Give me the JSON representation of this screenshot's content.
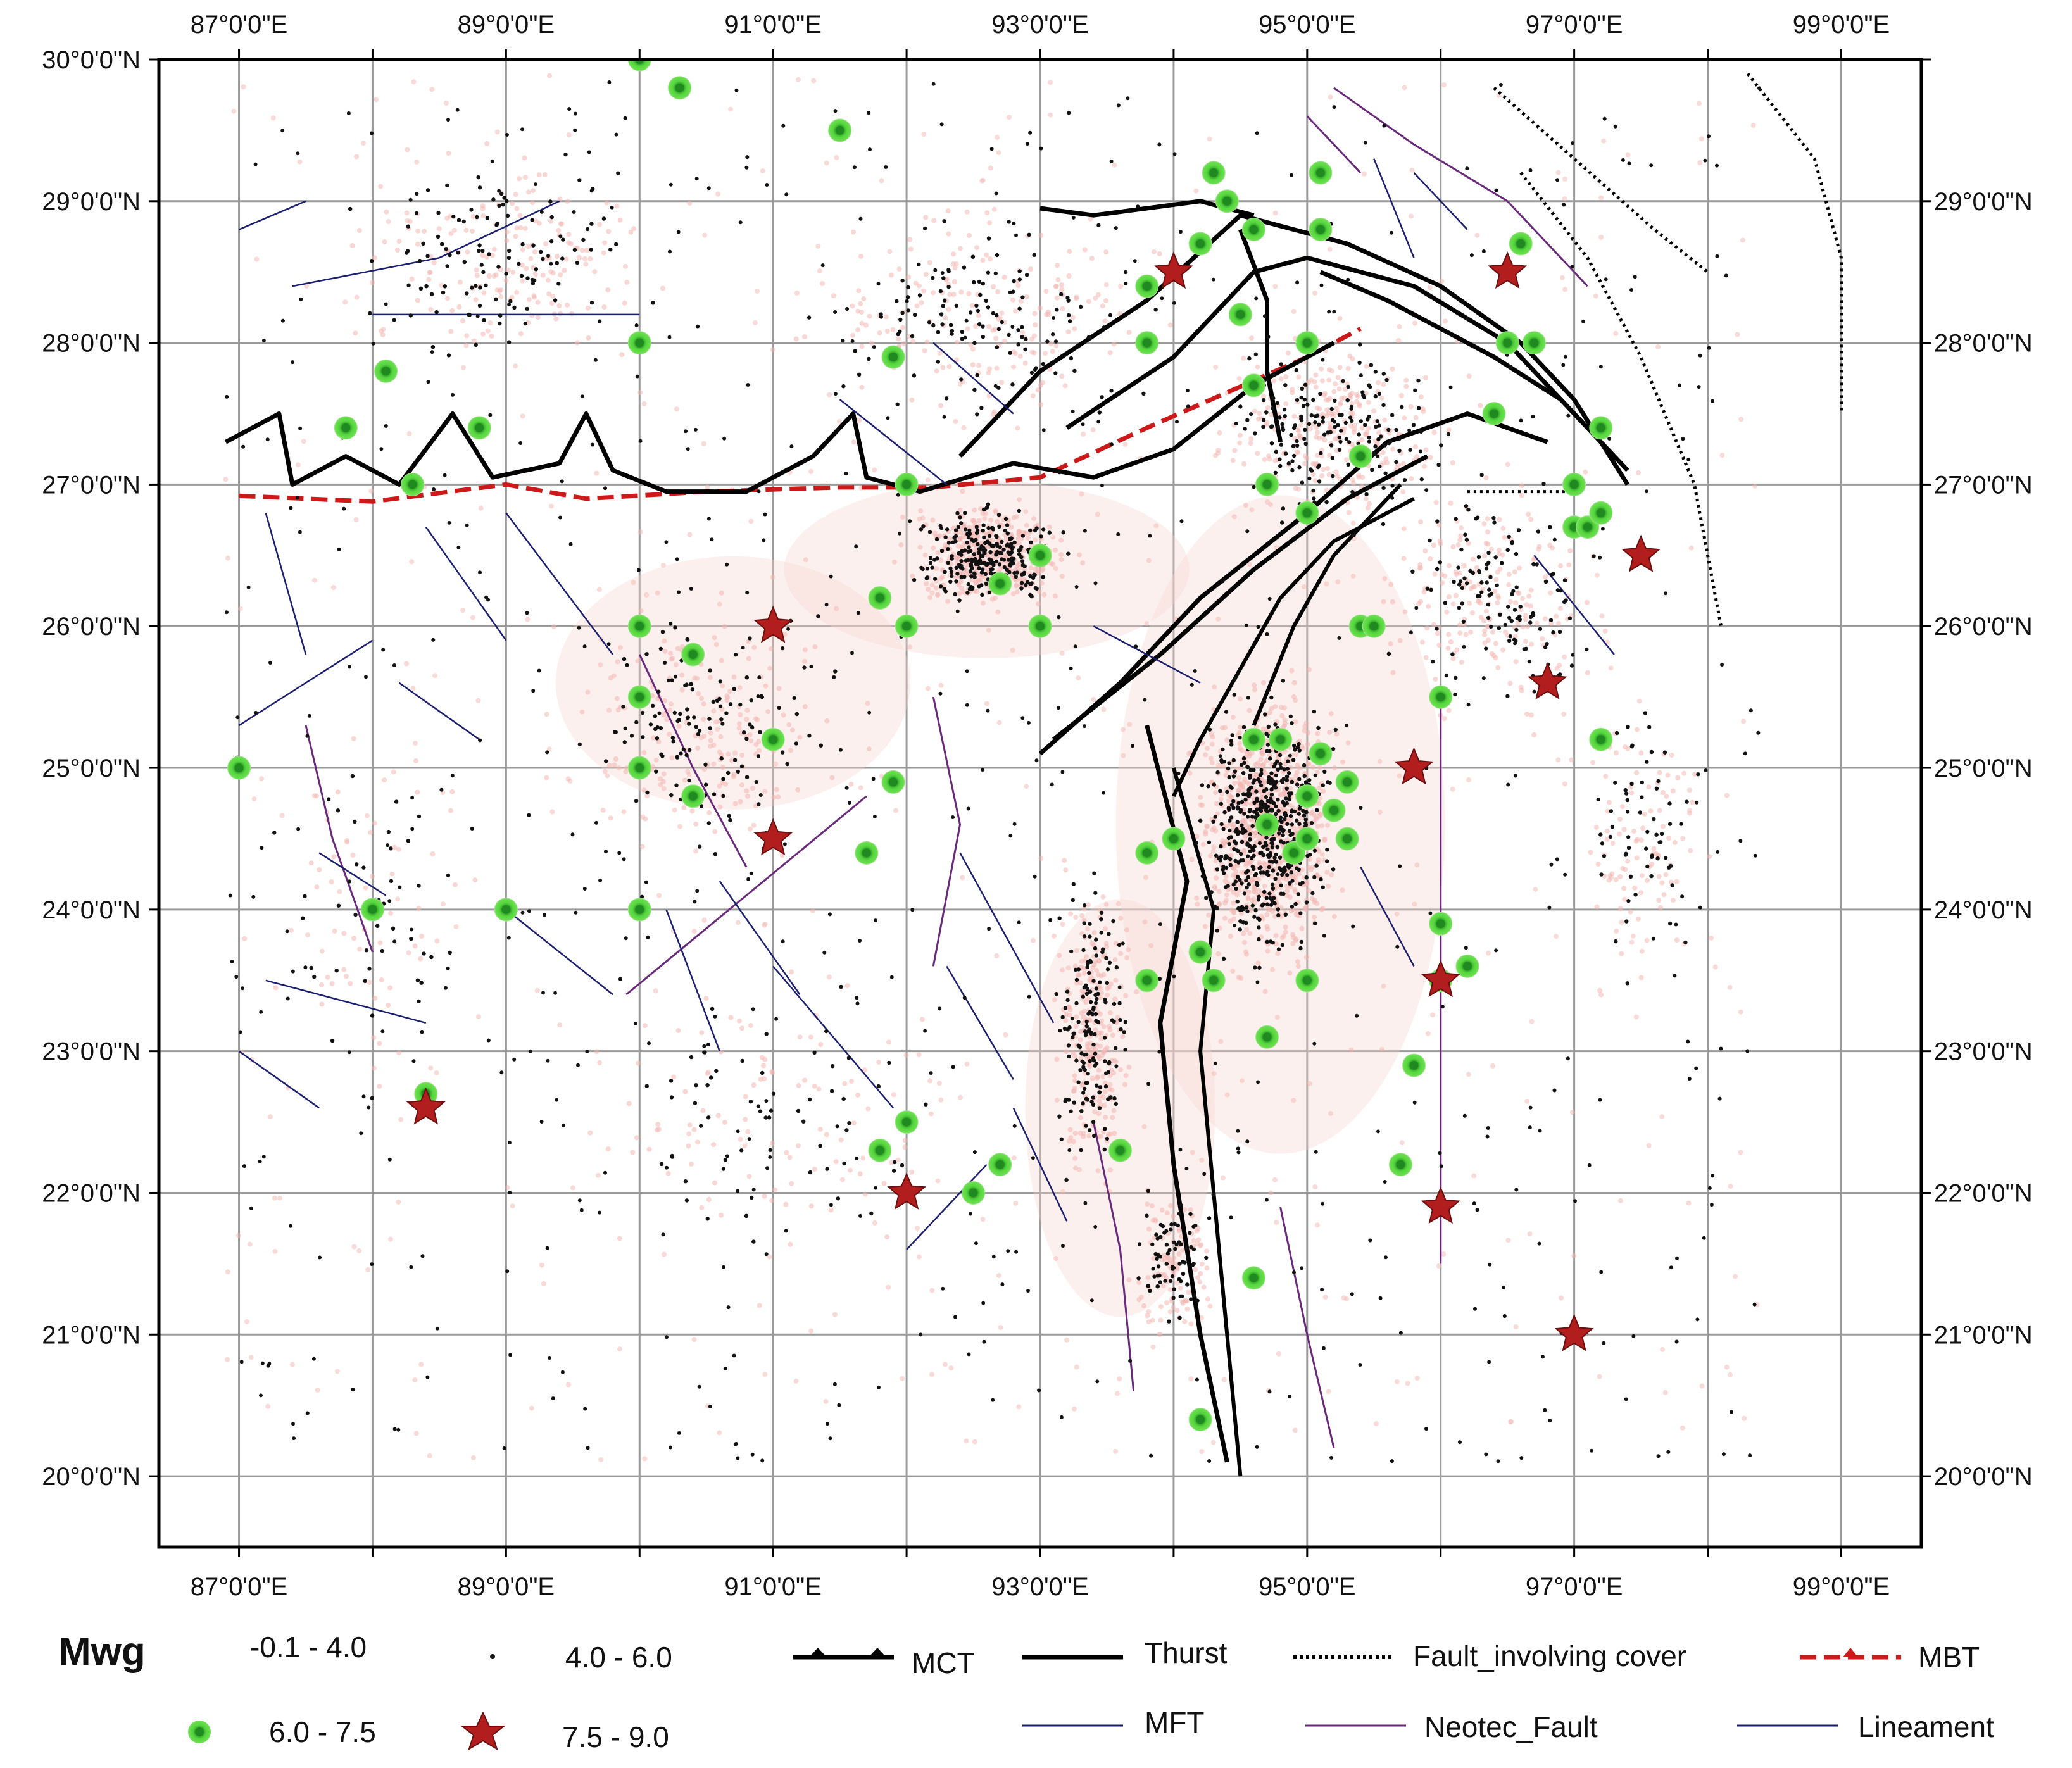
{
  "map": {
    "lon_range": [
      86.4,
      99.6
    ],
    "lat_range": [
      19.5,
      30.0
    ],
    "lon_ticks": [
      87,
      88,
      89,
      90,
      91,
      92,
      93,
      94,
      95,
      96,
      97,
      98,
      99
    ],
    "lat_ticks": [
      20,
      21,
      22,
      23,
      24,
      25,
      26,
      27,
      28,
      29,
      30
    ],
    "lon_tick_labels": [
      "87°0'0\"E",
      "89°0'0\"E",
      "91°0'0\"E",
      "93°0'0\"E",
      "95°0'0\"E",
      "97°0'0\"E",
      "99°0'0\"E"
    ],
    "lon_tick_label_values": [
      87,
      89,
      91,
      93,
      95,
      97,
      99
    ],
    "lat_tick_labels": [
      "20°0'0\"N",
      "21°0'0\"N",
      "22°0'0\"N",
      "23°0'0\"N",
      "24°0'0\"N",
      "25°0'0\"N",
      "26°0'0\"N",
      "27°0'0\"N",
      "28°0'0\"N",
      "29°0'0\"N",
      "30°0'0\"N"
    ],
    "lat_tick_label_values": [
      20,
      21,
      22,
      23,
      24,
      25,
      26,
      27,
      28,
      29,
      30
    ],
    "colors": {
      "grid": "#9a9a9a",
      "frame": "#000000",
      "thrust": "#000000",
      "mbt": "#cc1a1a",
      "neotec_fault": "#6a2a7a",
      "lineament": "#1c1f6e",
      "small_eq": "#f2b7b2",
      "medium_eq": "#111111",
      "large_eq_fill": "#55d63c",
      "large_eq_center": "#1f8a1f",
      "great_eq": "#b21e1e"
    }
  },
  "legend": {
    "title": "Mwg",
    "magnitude_classes": [
      {
        "label": "-0.1 - 4.0",
        "symbol": "tiny-pink-dot-icon"
      },
      {
        "label": "4.0 - 6.0",
        "symbol": "small-black-dot-icon"
      },
      {
        "label": "6.0 - 7.5",
        "symbol": "green-circle-icon"
      },
      {
        "label": "7.5 - 9.0",
        "symbol": "red-star-icon"
      }
    ],
    "structures": [
      {
        "label": "MCT",
        "symbol": "triangle-line-icon"
      },
      {
        "label": "Thurst",
        "symbol": "thick-line-icon"
      },
      {
        "label": "Fault_involving cover",
        "symbol": "dotted-line-icon"
      },
      {
        "label": "MBT",
        "symbol": "red-dashed-triangle-line-icon"
      },
      {
        "label": "MFT",
        "symbol": "thin-line-icon"
      },
      {
        "label": "Neotec_Fault",
        "symbol": "purple-line-icon"
      },
      {
        "label": "Lineament",
        "symbol": "navy-line-icon"
      }
    ]
  },
  "chart_data": {
    "type": "scatter",
    "xlabel": "",
    "ylabel": "",
    "xlim": [
      86.4,
      99.6
    ],
    "ylim": [
      19.5,
      30.0
    ],
    "grid": true,
    "legend_placement": "bottom",
    "series": [
      {
        "name": "6.0 - 7.5",
        "points": [
          [
            90.0,
            30.0
          ],
          [
            90.3,
            29.8
          ],
          [
            91.5,
            29.5
          ],
          [
            94.3,
            29.2
          ],
          [
            95.1,
            29.2
          ],
          [
            94.4,
            29.0
          ],
          [
            94.6,
            28.8
          ],
          [
            95.1,
            28.8
          ],
          [
            94.2,
            28.7
          ],
          [
            96.6,
            28.7
          ],
          [
            93.8,
            28.4
          ],
          [
            94.5,
            28.2
          ],
          [
            88.1,
            27.8
          ],
          [
            90.0,
            28.0
          ],
          [
            91.9,
            27.9
          ],
          [
            93.8,
            28.0
          ],
          [
            95.0,
            28.0
          ],
          [
            96.5,
            28.0
          ],
          [
            96.7,
            28.0
          ],
          [
            94.6,
            27.7
          ],
          [
            87.8,
            27.4
          ],
          [
            88.8,
            27.4
          ],
          [
            96.4,
            27.5
          ],
          [
            97.2,
            27.4
          ],
          [
            88.3,
            27.0
          ],
          [
            92.0,
            27.0
          ],
          [
            94.7,
            27.0
          ],
          [
            95.4,
            27.2
          ],
          [
            97.0,
            27.0
          ],
          [
            95.0,
            26.8
          ],
          [
            97.0,
            26.7
          ],
          [
            97.1,
            26.7
          ],
          [
            97.2,
            26.8
          ],
          [
            93.0,
            26.5
          ],
          [
            92.7,
            26.3
          ],
          [
            91.8,
            26.2
          ],
          [
            92.0,
            26.0
          ],
          [
            93.0,
            26.0
          ],
          [
            90.0,
            26.0
          ],
          [
            95.4,
            26.0
          ],
          [
            95.5,
            26.0
          ],
          [
            90.4,
            25.8
          ],
          [
            90.0,
            25.5
          ],
          [
            96.0,
            25.5
          ],
          [
            87.0,
            25.0
          ],
          [
            90.0,
            25.0
          ],
          [
            91.0,
            25.2
          ],
          [
            94.6,
            25.2
          ],
          [
            94.8,
            25.2
          ],
          [
            95.1,
            25.1
          ],
          [
            95.3,
            24.9
          ],
          [
            95.0,
            24.8
          ],
          [
            97.2,
            25.2
          ],
          [
            91.9,
            24.9
          ],
          [
            90.4,
            24.8
          ],
          [
            95.2,
            24.7
          ],
          [
            94.7,
            24.6
          ],
          [
            93.8,
            24.4
          ],
          [
            94.0,
            24.5
          ],
          [
            91.7,
            24.4
          ],
          [
            94.9,
            24.4
          ],
          [
            95.0,
            24.5
          ],
          [
            95.3,
            24.5
          ],
          [
            88.0,
            24.0
          ],
          [
            89.0,
            24.0
          ],
          [
            90.0,
            24.0
          ],
          [
            96.0,
            23.9
          ],
          [
            94.2,
            23.7
          ],
          [
            96.2,
            23.6
          ],
          [
            93.8,
            23.5
          ],
          [
            94.3,
            23.5
          ],
          [
            95.0,
            23.5
          ],
          [
            96.0,
            23.5
          ],
          [
            94.7,
            23.1
          ],
          [
            88.4,
            22.7
          ],
          [
            95.8,
            22.9
          ],
          [
            92.0,
            22.5
          ],
          [
            91.8,
            22.3
          ],
          [
            93.6,
            22.3
          ],
          [
            92.7,
            22.2
          ],
          [
            92.5,
            22.0
          ],
          [
            95.7,
            22.2
          ],
          [
            94.6,
            21.4
          ],
          [
            94.2,
            20.4
          ]
        ]
      },
      {
        "name": "7.5 - 9.0",
        "points": [
          [
            94.0,
            28.5
          ],
          [
            96.5,
            28.5
          ],
          [
            97.5,
            26.5
          ],
          [
            91.0,
            26.0
          ],
          [
            96.8,
            25.6
          ],
          [
            95.8,
            25.0
          ],
          [
            91.0,
            24.5
          ],
          [
            96.0,
            23.5
          ],
          [
            88.4,
            22.6
          ],
          [
            92.0,
            22.0
          ],
          [
            96.0,
            21.9
          ],
          [
            97.0,
            21.0
          ]
        ]
      }
    ]
  }
}
